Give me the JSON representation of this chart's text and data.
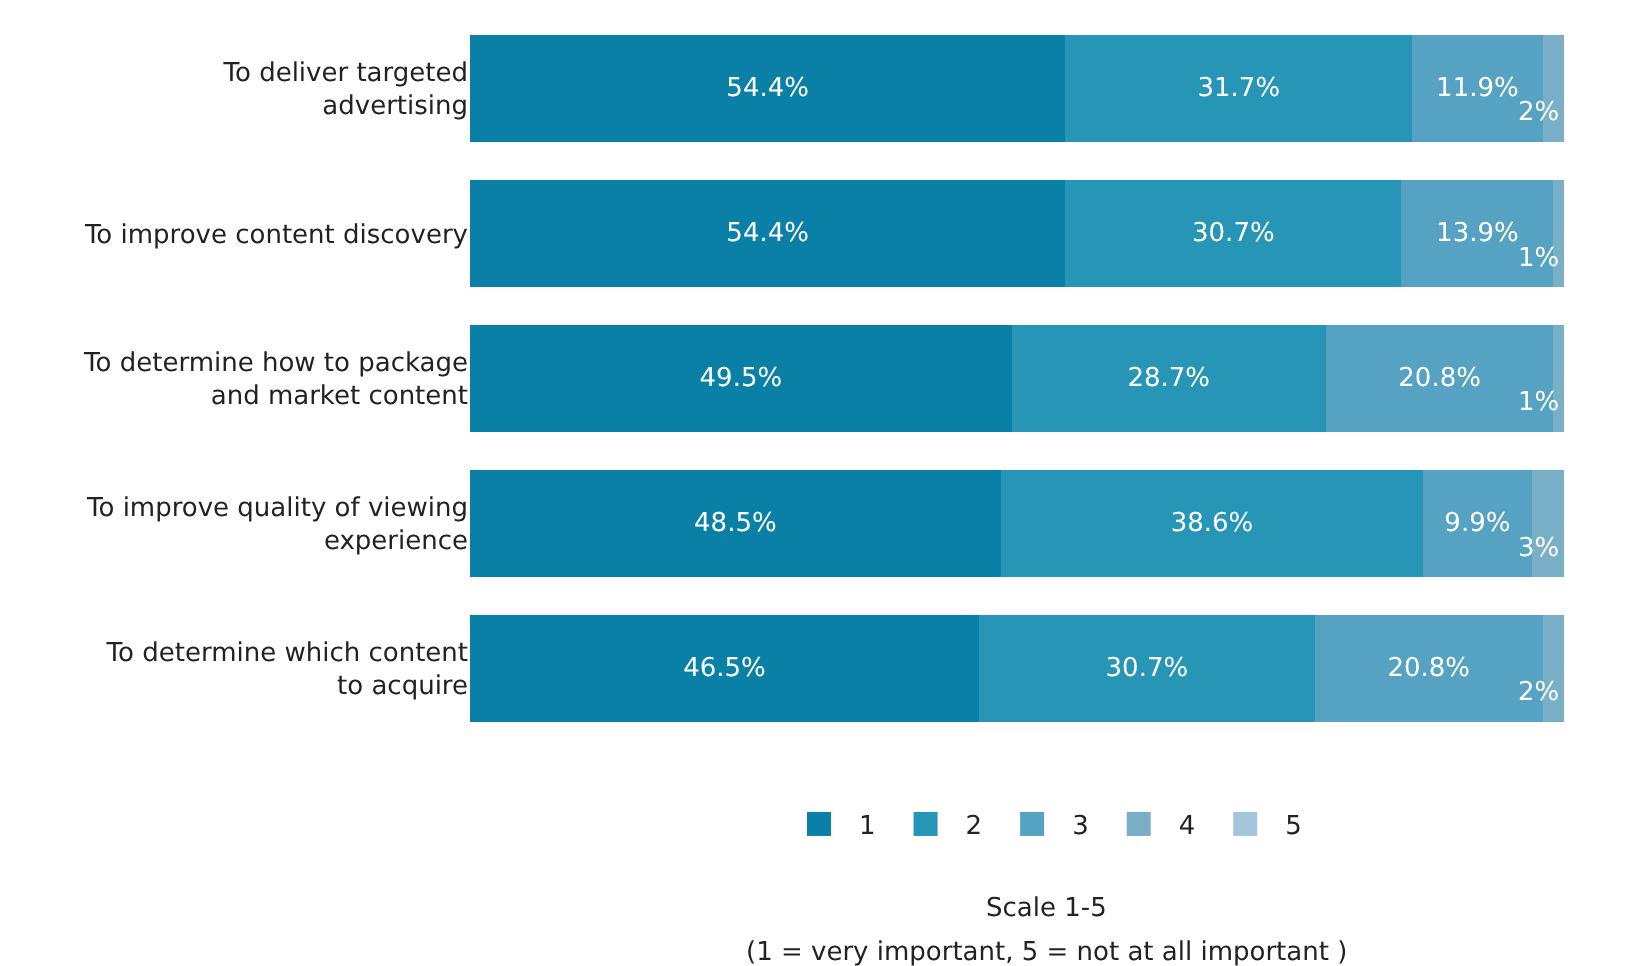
{
  "chart_data": {
    "type": "bar",
    "orientation": "horizontal",
    "stacked": true,
    "legend": "bottom",
    "tick_labels": "y",
    "legend_title": "Scale 1-5",
    "annotations": [
      "(1 = very important, 5 = not at all important )"
    ],
    "categories": [
      "To deliver targeted\nadvertising",
      "To improve content discovery",
      "To determine how to package\nand market content",
      "To improve quality of viewing\nexperience",
      "To determine which content\nto acquire"
    ],
    "series": [
      {
        "name": "1",
        "color": "#0b80a6",
        "values": [
          54.4,
          54.4,
          49.5,
          48.5,
          46.5
        ],
        "value_labels": [
          "54.4%",
          "54.4%",
          "49.5%",
          "48.5%",
          "46.5%"
        ]
      },
      {
        "name": "2",
        "color": "#2795b6",
        "values": [
          31.7,
          30.7,
          28.7,
          38.6,
          30.7
        ],
        "value_labels": [
          "31.7%",
          "30.7%",
          "28.7%",
          "38.6%",
          "30.7%"
        ]
      },
      {
        "name": "3",
        "color": "#56a2c2",
        "values": [
          11.9,
          13.9,
          20.8,
          9.9,
          20.8
        ],
        "value_labels": [
          "11.9%",
          "13.9%",
          "20.8%",
          "9.9%",
          "20.8%"
        ]
      },
      {
        "name": "4",
        "color": "#7aafc8",
        "values": [
          2,
          1,
          1,
          3,
          2
        ],
        "value_labels": [
          "2%",
          "1%",
          "1%",
          "3%",
          "2%"
        ]
      },
      {
        "name": "5",
        "color": "#a3c6da",
        "values": [
          null,
          null,
          null,
          null,
          null
        ]
      }
    ]
  }
}
